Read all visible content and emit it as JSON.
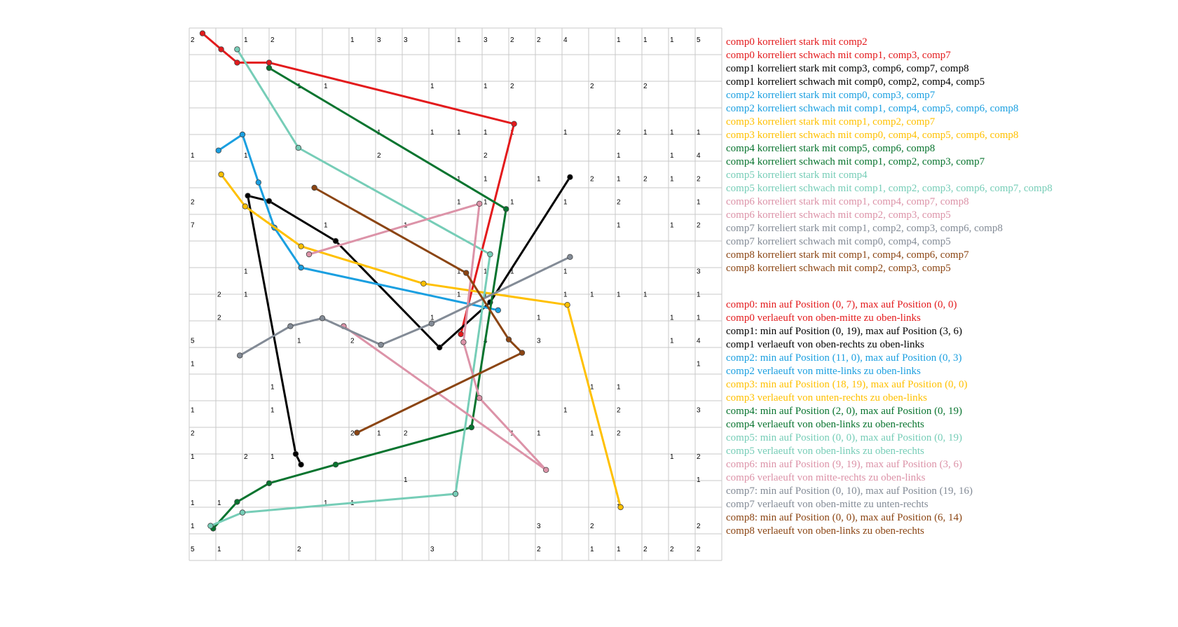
{
  "chart_data": {
    "type": "line",
    "grid": true,
    "legend_placement": "right",
    "grid_size": 20,
    "cell_labels": [
      [
        [
          0,
          2
        ],
        [
          2,
          1
        ],
        [
          3,
          2
        ],
        [
          6,
          1
        ],
        [
          7,
          3
        ],
        [
          8,
          3
        ],
        [
          10,
          1
        ],
        [
          11,
          3
        ],
        [
          12,
          2
        ],
        [
          13,
          2
        ],
        [
          14,
          4
        ],
        [
          16,
          1
        ],
        [
          17,
          1
        ],
        [
          18,
          1
        ],
        [
          19,
          5
        ]
      ],
      [],
      [
        [
          4,
          1
        ],
        [
          5,
          1
        ],
        [
          9,
          1
        ],
        [
          11,
          1
        ],
        [
          12,
          2
        ],
        [
          15,
          2
        ],
        [
          17,
          2
        ]
      ],
      [],
      [
        [
          7,
          1
        ],
        [
          9,
          1
        ],
        [
          10,
          1
        ],
        [
          11,
          1
        ],
        [
          12,
          1
        ],
        [
          14,
          1
        ],
        [
          16,
          2
        ],
        [
          17,
          1
        ],
        [
          18,
          1
        ],
        [
          19,
          1
        ]
      ],
      [
        [
          0,
          1
        ],
        [
          2,
          1
        ],
        [
          7,
          2
        ],
        [
          11,
          2
        ],
        [
          16,
          1
        ],
        [
          18,
          1
        ],
        [
          19,
          4
        ]
      ],
      [
        [
          10,
          1
        ],
        [
          11,
          1
        ],
        [
          13,
          1
        ],
        [
          15,
          2
        ],
        [
          16,
          1
        ],
        [
          17,
          2
        ],
        [
          18,
          1
        ],
        [
          19,
          2
        ]
      ],
      [
        [
          0,
          2
        ],
        [
          10,
          1
        ],
        [
          11,
          1
        ],
        [
          12,
          1
        ],
        [
          14,
          1
        ],
        [
          16,
          2
        ],
        [
          19,
          1
        ]
      ],
      [
        [
          0,
          7
        ],
        [
          3,
          1
        ],
        [
          5,
          1
        ],
        [
          8,
          1
        ],
        [
          16,
          1
        ],
        [
          18,
          1
        ],
        [
          19,
          2
        ]
      ],
      [],
      [
        [
          2,
          1
        ],
        [
          10,
          1
        ],
        [
          11,
          1
        ],
        [
          12,
          1
        ],
        [
          14,
          1
        ],
        [
          19,
          3
        ]
      ],
      [
        [
          1,
          2
        ],
        [
          2,
          1
        ],
        [
          10,
          1
        ],
        [
          11,
          1
        ],
        [
          14,
          1
        ],
        [
          15,
          1
        ],
        [
          16,
          1
        ],
        [
          17,
          1
        ],
        [
          19,
          1
        ]
      ],
      [
        [
          1,
          2
        ],
        [
          9,
          1
        ],
        [
          13,
          1
        ],
        [
          18,
          1
        ],
        [
          19,
          1
        ]
      ],
      [
        [
          0,
          5
        ],
        [
          4,
          1
        ],
        [
          6,
          2
        ],
        [
          11,
          4
        ],
        [
          13,
          3
        ],
        [
          18,
          1
        ],
        [
          19,
          4
        ]
      ],
      [
        [
          0,
          1
        ],
        [
          19,
          1
        ]
      ],
      [
        [
          3,
          1
        ],
        [
          15,
          1
        ],
        [
          16,
          1
        ]
      ],
      [
        [
          0,
          1
        ],
        [
          3,
          1
        ],
        [
          14,
          1
        ],
        [
          16,
          2
        ],
        [
          19,
          3
        ]
      ],
      [
        [
          0,
          2
        ],
        [
          6,
          2
        ],
        [
          7,
          1
        ],
        [
          8,
          2
        ],
        [
          12,
          1
        ],
        [
          13,
          1
        ],
        [
          15,
          1
        ],
        [
          16,
          2
        ]
      ],
      [
        [
          0,
          1
        ],
        [
          2,
          2
        ],
        [
          3,
          1
        ],
        [
          18,
          1
        ],
        [
          19,
          2
        ]
      ],
      [
        [
          8,
          1
        ],
        [
          19,
          1
        ]
      ],
      [
        [
          0,
          1
        ],
        [
          1,
          1
        ],
        [
          5,
          1
        ],
        [
          6,
          1
        ],
        [
          16,
          1
        ]
      ],
      [
        [
          0,
          1
        ],
        [
          13,
          3
        ],
        [
          15,
          2
        ],
        [
          19,
          2
        ]
      ],
      [
        [
          0,
          5
        ],
        [
          1,
          1
        ],
        [
          4,
          2
        ],
        [
          9,
          3
        ],
        [
          13,
          2
        ],
        [
          15,
          1
        ],
        [
          16,
          1
        ],
        [
          17,
          2
        ],
        [
          18,
          2
        ],
        [
          19,
          2
        ]
      ]
    ],
    "series": [
      {
        "color": "#e31a1c",
        "points": [
          [
            0.5,
            0.2
          ],
          [
            1.2,
            0.8
          ],
          [
            1.8,
            1.3
          ],
          [
            3.0,
            1.3
          ],
          [
            12.2,
            3.6
          ],
          [
            10.2,
            11.5
          ]
        ]
      },
      {
        "color": "#000000",
        "points": [
          [
            14.3,
            5.6
          ],
          [
            11.3,
            10.3
          ],
          [
            9.4,
            12.0
          ],
          [
            5.5,
            8.0
          ],
          [
            3.0,
            6.5
          ],
          [
            2.2,
            6.3
          ],
          [
            4.0,
            16.0
          ],
          [
            4.2,
            16.4
          ]
        ]
      },
      {
        "color": "#1a9fe0",
        "points": [
          [
            1.1,
            4.6
          ],
          [
            2.0,
            4.0
          ],
          [
            2.6,
            5.8
          ],
          [
            3.2,
            7.5
          ],
          [
            4.2,
            9.0
          ],
          [
            11.6,
            10.6
          ]
        ]
      },
      {
        "color": "#ffc000",
        "points": [
          [
            1.2,
            5.5
          ],
          [
            2.1,
            6.7
          ],
          [
            4.2,
            8.2
          ],
          [
            8.8,
            9.6
          ],
          [
            14.2,
            10.4
          ],
          [
            16.2,
            18.0
          ]
        ]
      },
      {
        "color": "#08742f",
        "points": [
          [
            3.0,
            1.5
          ],
          [
            11.9,
            6.8
          ],
          [
            10.6,
            15.0
          ],
          [
            5.5,
            16.4
          ],
          [
            3.0,
            17.1
          ],
          [
            1.8,
            17.8
          ],
          [
            0.9,
            18.8
          ]
        ]
      },
      {
        "color": "#76cdb7",
        "points": [
          [
            1.8,
            0.8
          ],
          [
            4.1,
            4.5
          ],
          [
            11.3,
            8.5
          ],
          [
            10.0,
            17.5
          ],
          [
            2.0,
            18.2
          ],
          [
            0.8,
            18.7
          ]
        ]
      },
      {
        "color": "#dc93a8",
        "points": [
          [
            4.5,
            8.5
          ],
          [
            10.9,
            6.6
          ],
          [
            10.3,
            11.8
          ],
          [
            10.9,
            13.9
          ],
          [
            13.4,
            16.6
          ],
          [
            5.8,
            11.2
          ]
        ]
      },
      {
        "color": "#838b96",
        "points": [
          [
            1.9,
            12.3
          ],
          [
            3.8,
            11.2
          ],
          [
            5.0,
            10.9
          ],
          [
            7.2,
            11.9
          ],
          [
            9.1,
            11.1
          ],
          [
            14.3,
            8.6
          ]
        ]
      },
      {
        "color": "#8b4513",
        "points": [
          [
            4.7,
            6.0
          ],
          [
            10.4,
            9.2
          ],
          [
            12.0,
            11.7
          ],
          [
            12.5,
            12.2
          ],
          [
            6.3,
            15.2
          ]
        ]
      }
    ],
    "legend": [
      {
        "text": "comp0 korreliert stark mit comp2",
        "color": "#e31a1c"
      },
      {
        "text": "comp0 korreliert schwach mit comp1, comp3, comp7",
        "color": "#e31a1c"
      },
      {
        "text": "comp1 korreliert stark mit comp3, comp6, comp7, comp8",
        "color": "#000000"
      },
      {
        "text": "comp1 korreliert schwach mit comp0, comp2, comp4, comp5",
        "color": "#000000"
      },
      {
        "text": "comp2 korreliert stark mit comp0, comp3, comp7",
        "color": "#1a9fe0"
      },
      {
        "text": "comp2 korreliert schwach mit comp1, comp4, comp5, comp6, comp8",
        "color": "#1a9fe0"
      },
      {
        "text": "comp3 korreliert stark mit comp1, comp2, comp7",
        "color": "#ffc000"
      },
      {
        "text": "comp3 korreliert schwach mit comp0, comp4, comp5, comp6, comp8",
        "color": "#ffc000"
      },
      {
        "text": "comp4 korreliert stark mit comp5, comp6, comp8",
        "color": "#08742f"
      },
      {
        "text": "comp4 korreliert schwach mit comp1, comp2, comp3, comp7",
        "color": "#08742f"
      },
      {
        "text": "comp5 korreliert stark mit comp4",
        "color": "#76cdb7"
      },
      {
        "text": "comp5 korreliert schwach mit comp1, comp2, comp3, comp6, comp7, comp8",
        "color": "#76cdb7"
      },
      {
        "text": "comp6 korreliert stark mit comp1, comp4, comp7, comp8",
        "color": "#dc93a8"
      },
      {
        "text": "comp6 korreliert schwach mit comp2, comp3, comp5",
        "color": "#dc93a8"
      },
      {
        "text": "comp7 korreliert stark mit comp1, comp2, comp3, comp6, comp8",
        "color": "#838b96"
      },
      {
        "text": "comp7 korreliert schwach mit comp0, comp4, comp5",
        "color": "#838b96"
      },
      {
        "text": "comp8 korreliert stark mit comp1, comp4, comp6, comp7",
        "color": "#8b4513"
      },
      {
        "text": "comp8 korreliert schwach mit comp2, comp3, comp5",
        "color": "#8b4513"
      }
    ],
    "annotations": [
      {
        "text": "comp0: min auf Position (0, 7), max auf Position (0, 0)",
        "color": "#e31a1c"
      },
      {
        "text": "comp0 verlaeuft von oben-mitte zu oben-links",
        "color": "#e31a1c"
      },
      {
        "text": "comp1: min auf Position (0, 19), max auf Position (3, 6)",
        "color": "#000000"
      },
      {
        "text": "comp1 verlaeuft von oben-rechts zu oben-links",
        "color": "#000000"
      },
      {
        "text": "comp2: min auf Position (11, 0), max auf Position (0, 3)",
        "color": "#1a9fe0"
      },
      {
        "text": "comp2 verlaeuft von mitte-links zu oben-links",
        "color": "#1a9fe0"
      },
      {
        "text": "comp3: min auf Position (18, 19), max auf Position (0, 0)",
        "color": "#ffc000"
      },
      {
        "text": "comp3 verlaeuft von unten-rechts zu oben-links",
        "color": "#ffc000"
      },
      {
        "text": "comp4: min auf Position (2, 0), max auf Position (0, 19)",
        "color": "#08742f"
      },
      {
        "text": "comp4 verlaeuft von oben-links zu oben-rechts",
        "color": "#08742f"
      },
      {
        "text": "comp5: min auf Position (0, 0), max auf Position (0, 19)",
        "color": "#76cdb7"
      },
      {
        "text": "comp5 verlaeuft von oben-links zu oben-rechts",
        "color": "#76cdb7"
      },
      {
        "text": "comp6: min auf Position (9, 19), max auf Position (3, 6)",
        "color": "#dc93a8"
      },
      {
        "text": "comp6 verlaeuft von mitte-rechts zu oben-links",
        "color": "#dc93a8"
      },
      {
        "text": "comp7: min auf Position (0, 10), max auf Position (19, 16)",
        "color": "#838b96"
      },
      {
        "text": "comp7 verlaeuft von oben-mitte zu unten-rechts",
        "color": "#838b96"
      },
      {
        "text": "comp8: min auf Position (0, 0), max auf Position (6, 14)",
        "color": "#8b4513"
      },
      {
        "text": "comp8 verlaeuft von oben-links zu oben-rechts",
        "color": "#8b4513"
      }
    ]
  }
}
